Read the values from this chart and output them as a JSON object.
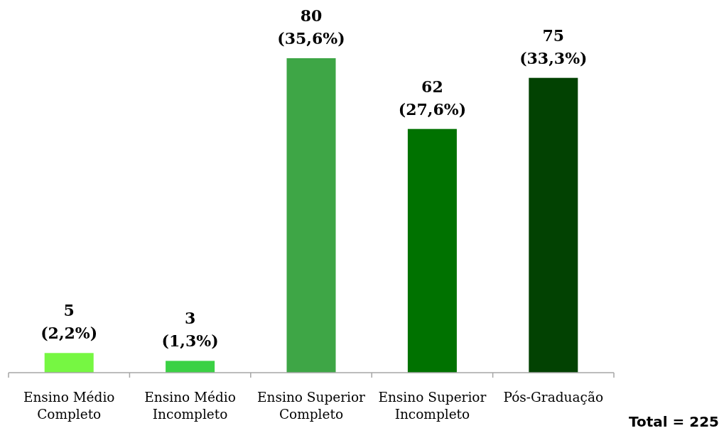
{
  "chart_data": {
    "type": "bar",
    "categories": [
      "Ensino Médio Completo",
      "Ensino Médio Incompleto",
      "Ensino Superior Completo",
      "Ensino Superior Incompleto",
      "Pós-Graduação"
    ],
    "values": [
      5,
      3,
      80,
      62,
      75
    ],
    "colors": [
      "#76f742",
      "#3bd144",
      "#3ea646",
      "#007200",
      "#024202"
    ],
    "value_labels": [
      "5\n(2,2%)",
      "3\n(1,3%)",
      "80\n(35,6%)",
      "62\n(27,6%)",
      "75\n(33,3%)"
    ],
    "tick_labels": "x",
    "annotations": [
      "Total = 225"
    ]
  }
}
